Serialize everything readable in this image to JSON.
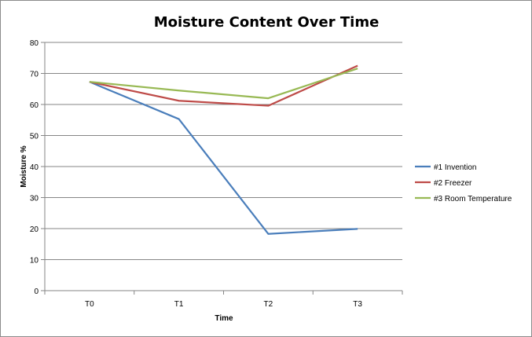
{
  "chart_data": {
    "type": "line",
    "title": "Moisture Content Over Time",
    "xlabel": "Time",
    "ylabel": "Moisture %",
    "categories": [
      "T0",
      "T1",
      "T2",
      "T3"
    ],
    "ylim": [
      0,
      80
    ],
    "yticks": [
      0,
      10,
      20,
      30,
      40,
      50,
      60,
      70,
      80
    ],
    "grid": true,
    "legend": "right",
    "series": [
      {
        "name": "#1 Invention",
        "color": "#4a7ebb",
        "values": [
          67.3,
          55.3,
          18.3,
          19.9
        ]
      },
      {
        "name": "#2 Freezer",
        "color": "#be4b48",
        "values": [
          67.3,
          61.2,
          59.6,
          72.5
        ]
      },
      {
        "name": "#3 Room Temperature",
        "color": "#98b954",
        "values": [
          67.3,
          64.5,
          62.0,
          71.6
        ]
      }
    ]
  }
}
